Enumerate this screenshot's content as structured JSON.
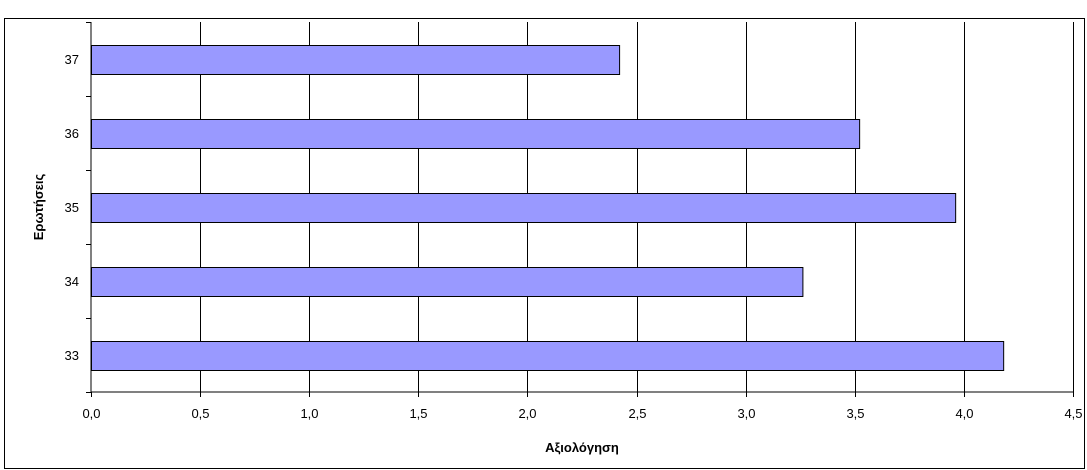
{
  "chart_data": {
    "type": "bar",
    "orientation": "horizontal",
    "categories": [
      "33",
      "34",
      "35",
      "36",
      "37"
    ],
    "series": [
      {
        "values": [
          4.18,
          3.26,
          3.96,
          3.52,
          2.42
        ]
      }
    ],
    "xlabel": "Αξιολόγηση",
    "ylabel": "Ερωτήσεις",
    "xlim": [
      0,
      4.5
    ],
    "xticks": [
      "0,0",
      "0,5",
      "1,0",
      "1,5",
      "2,0",
      "2,5",
      "3,0",
      "3,5",
      "4,0",
      "4,5"
    ],
    "grid": "vertical",
    "legend": "none",
    "colors": {
      "bar_fill": "#9999ff",
      "bar_stroke": "#000000",
      "grid": "#000000",
      "frame": "#000000"
    }
  }
}
